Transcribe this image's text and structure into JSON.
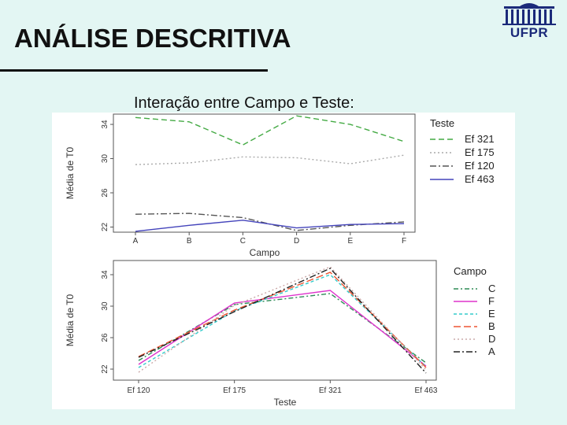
{
  "slide": {
    "title": "ANÁLISE DESCRITIVA",
    "subtitle": "Interação entre Campo e Teste:",
    "logo_text": "UFPR"
  },
  "colors": {
    "background": "#e3f6f3",
    "logo_blue": "#1b2a7a"
  },
  "chart_data": [
    {
      "type": "line",
      "xlabel": "Campo",
      "ylabel": "Média de T0",
      "categories": [
        "A",
        "B",
        "C",
        "D",
        "E",
        "F"
      ],
      "yticks": [
        22,
        26,
        30,
        34
      ],
      "ylim": [
        21.4,
        35.2
      ],
      "legend_title": "Teste",
      "legend_position": "right",
      "series": [
        {
          "name": "Ef 321",
          "color": "#44aa44",
          "dash": "7,4",
          "values": [
            34.8,
            34.3,
            31.6,
            35.0,
            34.0,
            32.0
          ]
        },
        {
          "name": "Ef 175",
          "color": "#aaaaaa",
          "dash": "2,3",
          "values": [
            29.3,
            29.5,
            30.2,
            30.1,
            29.4,
            30.4
          ]
        },
        {
          "name": "Ef 120",
          "color": "#555555",
          "dash": "8,3,2,3",
          "values": [
            23.5,
            23.6,
            23.1,
            21.6,
            22.2,
            22.6
          ]
        },
        {
          "name": "Ef 463",
          "color": "#4444bb",
          "dash": "",
          "values": [
            21.5,
            22.2,
            22.8,
            21.9,
            22.3,
            22.4
          ]
        }
      ]
    },
    {
      "type": "line",
      "xlabel": "Teste",
      "ylabel": "Média de T0",
      "categories": [
        "Ef 120",
        "Ef 175",
        "Ef 321",
        "Ef 463"
      ],
      "yticks": [
        22,
        26,
        30,
        34
      ],
      "ylim": [
        20.6,
        35.8
      ],
      "legend_title": "Campo",
      "legend_position": "right",
      "series": [
        {
          "name": "C",
          "color": "#2e8b57",
          "dash": "6,3,2,3",
          "values": [
            23.1,
            30.2,
            31.6,
            22.8
          ]
        },
        {
          "name": "F",
          "color": "#dd33cc",
          "dash": "",
          "values": [
            22.6,
            30.4,
            32.0,
            22.4
          ]
        },
        {
          "name": "E",
          "color": "#33cccc",
          "dash": "4,3",
          "values": [
            22.2,
            29.4,
            34.0,
            22.3
          ]
        },
        {
          "name": "B",
          "color": "#ee5533",
          "dash": "9,4",
          "values": [
            23.6,
            29.5,
            34.3,
            22.2
          ]
        },
        {
          "name": "D",
          "color": "#ccaaaa",
          "dash": "2,3",
          "values": [
            21.6,
            30.1,
            35.0,
            21.9
          ]
        },
        {
          "name": "A",
          "color": "#222222",
          "dash": "8,3,2,3",
          "values": [
            23.5,
            29.3,
            34.8,
            21.5
          ]
        }
      ]
    }
  ]
}
